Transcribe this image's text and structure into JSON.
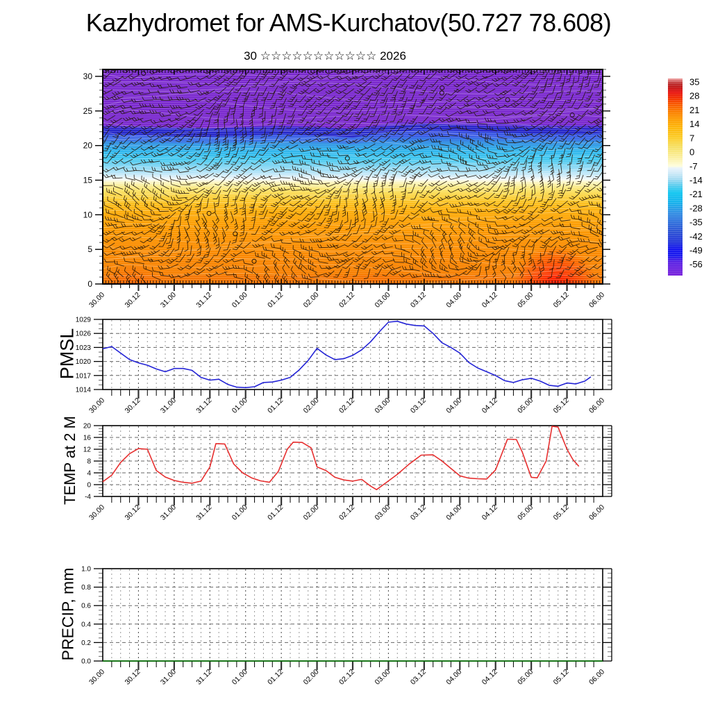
{
  "title": "Kazhydromet for AMS-Kurchatov(50.727 78.608)",
  "subtitle": "30 ☆☆☆☆☆☆☆☆☆☆☆ 2026",
  "time_labels": [
    "30.00",
    "30.12",
    "31.00",
    "31.12",
    "01.00",
    "01.12",
    "02.00",
    "02.12",
    "03.00",
    "03.12",
    "04.00",
    "04.12",
    "05.00",
    "05.12",
    "06.00"
  ],
  "chart_data": [
    {
      "name": "Temperature-height cross-section",
      "type": "heatmap",
      "x_tick_labels": [
        "30.00",
        "30.12",
        "31.00",
        "31.12",
        "01.00",
        "01.12",
        "02.00",
        "02.12",
        "03.00",
        "03.12",
        "04.00",
        "04.12",
        "05.00",
        "05.12",
        "06.00"
      ],
      "x_range_hours": [
        0,
        168
      ],
      "ylim": [
        0,
        31
      ],
      "yticks": [
        0,
        5,
        10,
        15,
        20,
        25,
        30
      ],
      "ytick_labels": [
        "0",
        "5",
        "10",
        "15",
        "20",
        "25",
        "30"
      ],
      "overlay": "dense wind barbs with flags and occasional calm circles over shaded temperature field, thin white contour streaks",
      "colorbar_labels": [
        35,
        28,
        21,
        14,
        7,
        0,
        -7,
        -14,
        -21,
        -28,
        -35,
        -42,
        -49,
        -56
      ],
      "colorbar_gradient_bottom_to_top": [
        [
          0.0,
          "#7b24dc"
        ],
        [
          0.07,
          "#5a22e4"
        ],
        [
          0.1,
          "#1d1dee"
        ],
        [
          0.135,
          "#1414f0"
        ],
        [
          0.17,
          "#2336da"
        ],
        [
          0.22,
          "#2e52d4"
        ],
        [
          0.27,
          "#3070dc"
        ],
        [
          0.32,
          "#3390e4"
        ],
        [
          0.37,
          "#18b2ec"
        ],
        [
          0.42,
          "#10c6f0"
        ],
        [
          0.455,
          "#55ccee"
        ],
        [
          0.49,
          "#a6dcf2"
        ],
        [
          0.52,
          "#cfeaf8"
        ],
        [
          0.545,
          "#e8f3fb"
        ],
        [
          0.556,
          "#fefddc"
        ],
        [
          0.6,
          "#fbf0a0"
        ],
        [
          0.65,
          "#f6e168"
        ],
        [
          0.7,
          "#fccc28"
        ],
        [
          0.75,
          "#fdb70c"
        ],
        [
          0.79,
          "#fd9f02"
        ],
        [
          0.83,
          "#fb8000"
        ],
        [
          0.87,
          "#f85a00"
        ],
        [
          0.9,
          "#f23000"
        ],
        [
          0.93,
          "#e81410"
        ],
        [
          0.955,
          "#c01616"
        ],
        [
          0.975,
          "#bc3030"
        ],
        [
          1.0,
          "#f0a0a0"
        ]
      ],
      "field_vertical_profile": [
        [
          31,
          "#7a28ce"
        ],
        [
          23.6,
          "#7a28ce"
        ],
        [
          22.9,
          "#5a30d8"
        ],
        [
          22.3,
          "#2b2bd0"
        ],
        [
          21.5,
          "#3352e6"
        ],
        [
          20.5,
          "#2f8be2"
        ],
        [
          19.3,
          "#2eb4ec"
        ],
        [
          18.1,
          "#3fc8f0"
        ],
        [
          17.1,
          "#7cd4f2"
        ],
        [
          16.1,
          "#b4e4f8"
        ],
        [
          15.5,
          "#ddf0fa"
        ],
        [
          15.1,
          "#f4faf8"
        ],
        [
          14.8,
          "#fdf8ce"
        ],
        [
          14.1,
          "#faec8e"
        ],
        [
          13.3,
          "#fbde5a"
        ],
        [
          12.3,
          "#fccc32"
        ],
        [
          11.3,
          "#fdba16"
        ],
        [
          10.3,
          "#fdab08"
        ],
        [
          8.6,
          "#fd9d02"
        ],
        [
          6,
          "#fb8f00"
        ],
        [
          3,
          "#f98400"
        ],
        [
          0,
          "#f67b00"
        ]
      ],
      "purple_boundary_heights": [
        22.9,
        22.8,
        22.6,
        22.5,
        22.7,
        22.9,
        22.7,
        22.4,
        23.2,
        23.6,
        23.4,
        23.2,
        23.0,
        22.9,
        23.0
      ],
      "hotspots": [
        {
          "x_hours": 152,
          "rx_hours": 14,
          "ry_units": 5.5,
          "color": "#ff1200"
        },
        {
          "x_hours": 10,
          "rx_hours": 10,
          "ry_units": 3,
          "color": "#fb5c00"
        },
        {
          "x_hours": 92,
          "rx_hours": 8,
          "ry_units": 2.2,
          "color": "#fb6a00"
        }
      ]
    },
    {
      "name": "PMSL",
      "type": "line",
      "color": "#2323d6",
      "ylim": [
        1014,
        1029
      ],
      "yticks": [
        1014,
        1017,
        1020,
        1023,
        1026,
        1029
      ],
      "ytick_labels": [
        "1014",
        "1017",
        "1020",
        "1023",
        "1026",
        "1029"
      ],
      "x_hours": [
        0,
        3,
        6,
        9,
        12,
        15,
        18,
        21,
        24,
        27,
        30,
        33,
        36,
        39,
        42,
        45,
        48,
        51,
        54,
        57,
        60,
        63,
        66,
        69,
        72,
        75,
        78,
        81,
        84,
        87,
        90,
        93,
        96,
        99,
        102,
        105,
        108,
        111,
        114,
        117,
        120,
        123,
        126,
        129,
        132,
        135,
        138,
        141,
        144,
        147,
        150,
        153,
        156,
        159,
        162,
        164
      ],
      "values": [
        1022.7,
        1023.2,
        1021.8,
        1020.4,
        1019.7,
        1019.2,
        1018.4,
        1017.8,
        1018.5,
        1018.5,
        1018.1,
        1016.6,
        1016.0,
        1016.2,
        1015.1,
        1014.5,
        1014.4,
        1014.6,
        1015.5,
        1015.6,
        1016.0,
        1016.6,
        1018.2,
        1020.2,
        1022.8,
        1021.4,
        1020.4,
        1020.6,
        1021.3,
        1022.5,
        1024.2,
        1026.4,
        1028.4,
        1028.6,
        1028.0,
        1027.7,
        1027.6,
        1026.0,
        1024.0,
        1023.0,
        1021.8,
        1019.8,
        1018.6,
        1017.8,
        1017.0,
        1015.9,
        1015.5,
        1016.1,
        1016.4,
        1015.8,
        1014.9,
        1014.7,
        1015.4,
        1015.2,
        1015.8,
        1016.7
      ]
    },
    {
      "name": "TEMP at 2 M",
      "type": "line",
      "color": "#e62e2e",
      "ylim": [
        -4,
        20
      ],
      "yticks": [
        -4,
        0,
        4,
        8,
        12,
        16,
        20
      ],
      "ytick_labels": [
        "-4",
        "0",
        "4",
        "8",
        "12",
        "16",
        "20"
      ],
      "x_hours": [
        0,
        3,
        6,
        9,
        12,
        15,
        18,
        21,
        24,
        27,
        30,
        33,
        36,
        38,
        41,
        44,
        47,
        50,
        53,
        56,
        59,
        62,
        64,
        67,
        70,
        72,
        75,
        78,
        81,
        84,
        87,
        90,
        92,
        95,
        99,
        103,
        107,
        111,
        114,
        117,
        120,
        123,
        126,
        129,
        132,
        136,
        139,
        141,
        144,
        146,
        149,
        151,
        153,
        156,
        158,
        160
      ],
      "values": [
        1.0,
        3.2,
        7.5,
        10.5,
        12.2,
        12.0,
        4.8,
        2.6,
        1.4,
        0.8,
        0.5,
        1.2,
        6.0,
        13.9,
        13.8,
        7.0,
        4.0,
        2.3,
        1.3,
        0.8,
        4.5,
        12.0,
        14.4,
        14.3,
        12.5,
        6.0,
        4.8,
        2.5,
        1.6,
        1.2,
        1.8,
        -0.5,
        -1.7,
        0.5,
        3.5,
        7.0,
        10.0,
        10.1,
        8.0,
        5.5,
        3.0,
        2.2,
        2.0,
        1.9,
        5.0,
        15.4,
        15.3,
        11.0,
        2.5,
        2.3,
        8.0,
        19.8,
        19.5,
        12.0,
        8.5,
        6.2
      ]
    },
    {
      "name": "PRECIP, mm",
      "type": "line",
      "color": "#007c00",
      "ylim": [
        0,
        1
      ],
      "yticks": [
        0,
        0.2,
        0.4,
        0.6,
        0.8,
        1
      ],
      "ytick_labels": [
        "0.0",
        "0.2",
        "0.4",
        "0.6",
        "0.8",
        "1.0"
      ],
      "x_hours": [
        0,
        168
      ],
      "values": [
        0,
        0
      ]
    }
  ]
}
